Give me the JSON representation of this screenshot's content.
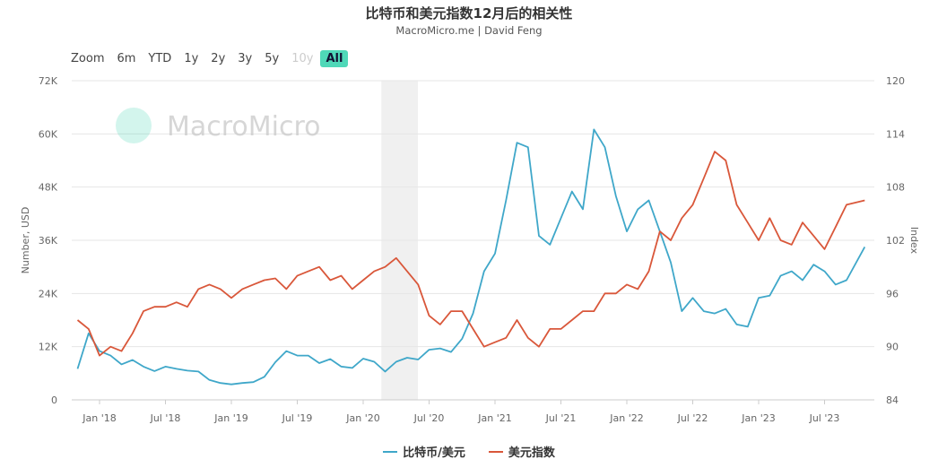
{
  "title": "比特币和美元指数12月后的相关性",
  "subtitle": "MacroMicro.me | David Feng",
  "watermark": "MacroMicro",
  "zoom": {
    "label": "Zoom",
    "buttons": [
      "6m",
      "YTD",
      "1y",
      "2y",
      "3y",
      "5y",
      "10y",
      "All"
    ],
    "disabled": "10y",
    "selected": "All"
  },
  "colors": {
    "btc": "#3fa7c9",
    "dxy": "#d9573a",
    "band": "#f0f0f0",
    "selected": "#4fd8b8"
  },
  "chart_data": {
    "type": "line",
    "title": "比特币和美元指数12月后的相关性",
    "ylabel_left": "Number, USD",
    "ylabel_right": "Index",
    "ylim_left": [
      0,
      72000
    ],
    "ylim_right": [
      84,
      120
    ],
    "yticks_left": [
      "0",
      "12K",
      "24K",
      "36K",
      "48K",
      "60K",
      "72K"
    ],
    "yticks_right": [
      "84",
      "90",
      "96",
      "102",
      "108",
      "114",
      "120"
    ],
    "xticks": [
      "Jan '18",
      "Jul '18",
      "Jan '19",
      "Jul '19",
      "Jan '20",
      "Jul '20",
      "Jan '21",
      "Jul '21",
      "Jan '22",
      "Jul '22",
      "Jan '23",
      "Jul '23"
    ],
    "shaded_range": [
      "2020-02",
      "2020-05"
    ],
    "grid": true,
    "legend": "bottom",
    "x": [
      "2017-11",
      "2017-12",
      "2018-01",
      "2018-02",
      "2018-03",
      "2018-04",
      "2018-05",
      "2018-06",
      "2018-07",
      "2018-08",
      "2018-09",
      "2018-10",
      "2018-11",
      "2018-12",
      "2019-01",
      "2019-02",
      "2019-03",
      "2019-04",
      "2019-05",
      "2019-06",
      "2019-07",
      "2019-08",
      "2019-09",
      "2019-10",
      "2019-11",
      "2019-12",
      "2020-01",
      "2020-02",
      "2020-03",
      "2020-04",
      "2020-05",
      "2020-06",
      "2020-07",
      "2020-08",
      "2020-09",
      "2020-10",
      "2020-11",
      "2020-12",
      "2021-01",
      "2021-02",
      "2021-03",
      "2021-04",
      "2021-05",
      "2021-06",
      "2021-07",
      "2021-08",
      "2021-09",
      "2021-10",
      "2021-11",
      "2021-12",
      "2022-01",
      "2022-02",
      "2022-03",
      "2022-04",
      "2022-05",
      "2022-06",
      "2022-07",
      "2022-08",
      "2022-09",
      "2022-10",
      "2022-11",
      "2022-12",
      "2023-01",
      "2023-02",
      "2023-03",
      "2023-04",
      "2023-05",
      "2023-06",
      "2023-07",
      "2023-08",
      "2023-09",
      "2023-10"
    ],
    "series": [
      {
        "name": "比特币/美元",
        "axis": "left",
        "values": [
          7000,
          15000,
          11000,
          10000,
          8000,
          9000,
          7500,
          6500,
          7500,
          7000,
          6600,
          6400,
          4500,
          3800,
          3500,
          3800,
          4000,
          5200,
          8500,
          11000,
          10000,
          10000,
          8300,
          9200,
          7500,
          7200,
          9300,
          8600,
          6400,
          8600,
          9500,
          9100,
          11300,
          11600,
          10800,
          13800,
          19500,
          29000,
          33000,
          45000,
          58000,
          57000,
          37000,
          35000,
          41000,
          47000,
          43000,
          61000,
          57000,
          46000,
          38000,
          43000,
          45000,
          38000,
          31000,
          20000,
          23000,
          20000,
          19500,
          20500,
          17000,
          16500,
          23000,
          23500,
          28000,
          29000,
          27000,
          30500,
          29000,
          26000,
          27000,
          34500
        ]
      },
      {
        "name": "美元指数",
        "axis": "right",
        "values": [
          93,
          92,
          89,
          90,
          89.5,
          91.5,
          94,
          94.5,
          94.5,
          95,
          94.5,
          96.5,
          97,
          96.5,
          95.5,
          96.5,
          97,
          97.5,
          97.7,
          96.5,
          98,
          98.5,
          99,
          97.5,
          98,
          96.5,
          97.5,
          98.5,
          99,
          100,
          98.5,
          97,
          93.5,
          92.5,
          94,
          94,
          92,
          90,
          90.5,
          91,
          93,
          91,
          90,
          92,
          92,
          93,
          94,
          94,
          96,
          96,
          97,
          96.5,
          98.5,
          103,
          102,
          104.5,
          106,
          109,
          112,
          111,
          106,
          104,
          102,
          104.5,
          102,
          101.5,
          104,
          102.5,
          101,
          103.5,
          106,
          106.5
        ]
      }
    ]
  }
}
